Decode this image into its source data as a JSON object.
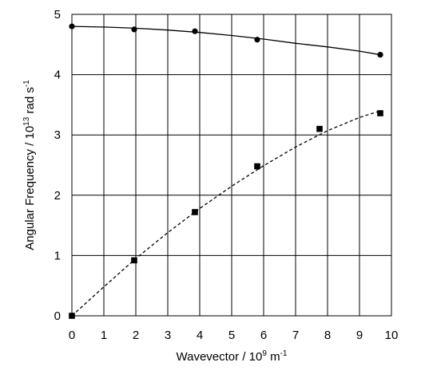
{
  "chart_data": {
    "type": "scatter",
    "xlabel": {
      "main": "Wavevector / 10",
      "sup1": "9",
      "mid": " m",
      "sup2": "-1"
    },
    "ylabel": {
      "main": "Angular Frequency / 10",
      "sup1": "13",
      "mid": " rad s",
      "sup2": "-1"
    },
    "xlim": [
      0,
      10
    ],
    "ylim": [
      0,
      5
    ],
    "xticks": [
      0,
      1,
      2,
      3,
      4,
      5,
      6,
      7,
      8,
      9,
      10
    ],
    "yticks": [
      0,
      1,
      2,
      3,
      4,
      5
    ],
    "grid": true,
    "series": [
      {
        "marker": "circle",
        "line": "solid",
        "x": [
          0,
          1.95,
          3.85,
          5.8,
          9.65
        ],
        "y": [
          4.8,
          4.75,
          4.72,
          4.58,
          4.33
        ],
        "fit": [
          [
            0,
            4.8
          ],
          [
            1,
            4.79
          ],
          [
            2,
            4.77
          ],
          [
            3,
            4.74
          ],
          [
            4,
            4.7
          ],
          [
            5,
            4.65
          ],
          [
            6,
            4.59
          ],
          [
            7,
            4.52
          ],
          [
            8,
            4.46
          ],
          [
            9,
            4.39
          ],
          [
            9.65,
            4.33
          ]
        ]
      },
      {
        "marker": "square",
        "line": "dashed",
        "x": [
          0,
          1.95,
          3.85,
          5.8,
          7.75,
          9.65
        ],
        "y": [
          0,
          0.92,
          1.72,
          2.48,
          3.1,
          3.36
        ],
        "fit": [
          [
            0,
            0
          ],
          [
            1,
            0.48
          ],
          [
            2,
            0.95
          ],
          [
            3,
            1.38
          ],
          [
            4,
            1.78
          ],
          [
            5,
            2.15
          ],
          [
            6,
            2.49
          ],
          [
            7,
            2.8
          ],
          [
            8,
            3.07
          ],
          [
            9,
            3.29
          ],
          [
            9.65,
            3.4
          ]
        ]
      }
    ]
  }
}
